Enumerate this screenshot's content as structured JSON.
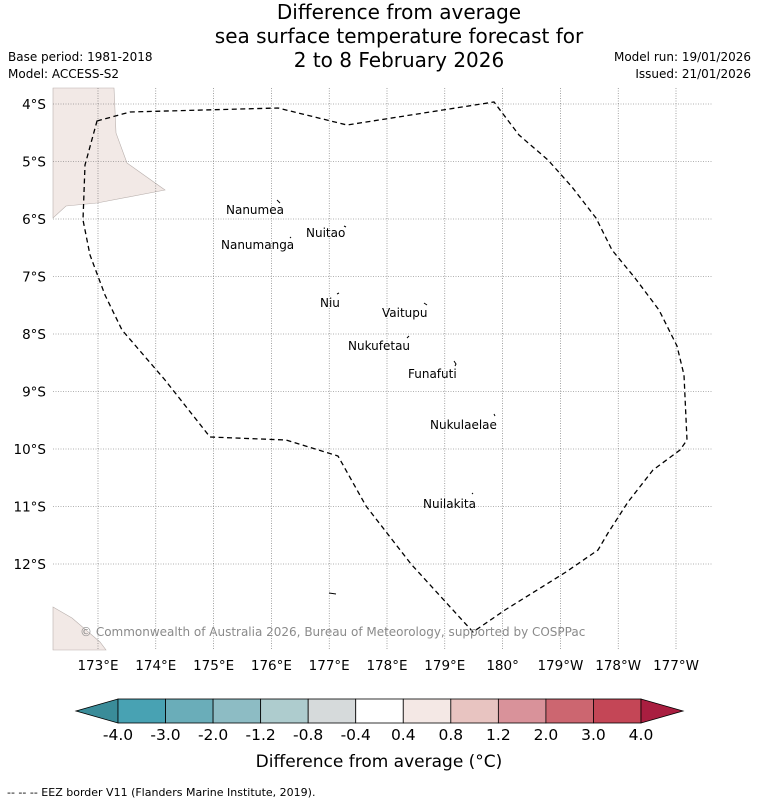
{
  "title": {
    "line1": "Difference from average",
    "line2": "sea surface temperature forecast for",
    "line3": "2 to 8 February 2026"
  },
  "meta": {
    "base_period": "Base period: 1981-2018",
    "model": "Model: ACCESS-S2",
    "model_run": "Model run: 19/01/2026",
    "issued": "Issued: 21/01/2026"
  },
  "map": {
    "lat_labels": [
      "4°S",
      "5°S",
      "6°S",
      "7°S",
      "8°S",
      "9°S",
      "10°S",
      "11°S",
      "12°S"
    ],
    "lon_labels": [
      "173°E",
      "174°E",
      "175°E",
      "176°E",
      "177°E",
      "178°E",
      "179°E",
      "180°",
      "179°W",
      "178°W",
      "177°W"
    ],
    "places": [
      "Nanumea",
      "Nuitao",
      "Nanumanga",
      "Niu",
      "Vaitupu",
      "Nukufetau",
      "Funafuti",
      "Nukulaelae",
      "Nuilakita"
    ],
    "copyright": "© Commonwealth of Australia 2026, Bureau of Meteorology, supported by COSPPac"
  },
  "colorbar": {
    "ticks": [
      "-4.0",
      "-3.0",
      "-2.0",
      "-1.2",
      "-0.8",
      "-0.4",
      "0.4",
      "0.8",
      "1.2",
      "2.0",
      "3.0",
      "4.0"
    ],
    "colors": [
      "#3a8c99",
      "#48a2b3",
      "#6aadb9",
      "#8dbcc4",
      "#aeccce",
      "#d6dadb",
      "#ffffff",
      "#f4e8e5",
      "#e8c4c1",
      "#d9929a",
      "#cc6670",
      "#c44656",
      "#a91e40"
    ],
    "label": "Difference from average (°C)"
  },
  "footer": "-- -- -- EEZ border V11 (Flanders Marine Institute, 2019)."
}
